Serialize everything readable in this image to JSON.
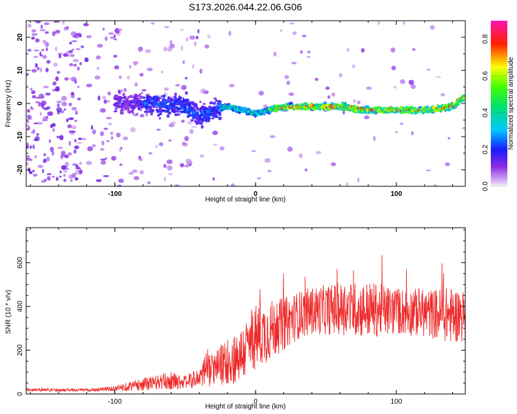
{
  "title": "S173.2026.044.22.06.G06",
  "colors": {
    "snr_line": "#ee2b2b",
    "frame": "#000000"
  },
  "chart_data": [
    {
      "type": "heatmap",
      "xlabel": "Height of straight line (km)",
      "ylabel": "Frequency (Hz)",
      "xlim": [
        -163,
        149
      ],
      "ylim": [
        -25,
        25
      ],
      "x_ticks": [
        -100,
        0,
        100
      ],
      "y_ticks": [
        -20,
        -10,
        0,
        10,
        20
      ],
      "colorbar": {
        "label": "Normalized spectral amplitude",
        "range": [
          0.0,
          0.9
        ],
        "ticks": [
          0.0,
          0.2,
          0.4,
          0.6,
          0.8
        ],
        "tick_labels": [
          "0.0",
          "0.2",
          "0.4",
          "0.6",
          "0.8"
        ]
      },
      "ridge": {
        "x": [
          -90,
          -70,
          -50,
          -40,
          -30,
          -20,
          0,
          20,
          40,
          60,
          80,
          100,
          120,
          140,
          148
        ],
        "freq_hz": [
          0,
          0,
          -1,
          -4,
          -2,
          -1,
          -3,
          -1,
          -1,
          -1,
          -2,
          -2,
          -2,
          -1,
          2
        ]
      }
    },
    {
      "type": "line",
      "xlabel": "Height of straight line (km)",
      "ylabel": "SNR (10 * v/v)",
      "xlim": [
        -163,
        149
      ],
      "ylim": [
        0,
        760
      ],
      "x_ticks": [
        -100,
        0,
        100
      ],
      "y_ticks": [
        0,
        200,
        400,
        600
      ],
      "series": [
        {
          "name": "SNR",
          "envelope_x": [
            -163,
            -120,
            -100,
            -80,
            -60,
            -50,
            -40,
            -35,
            -30,
            -20,
            -10,
            0,
            10,
            20,
            30,
            40,
            60,
            80,
            100,
            120,
            140,
            149
          ],
          "envelope_mean": [
            20,
            18,
            25,
            45,
            60,
            55,
            75,
            120,
            110,
            150,
            180,
            260,
            290,
            320,
            360,
            380,
            390,
            385,
            380,
            370,
            360,
            360
          ],
          "envelope_amplitude": [
            8,
            6,
            12,
            30,
            40,
            30,
            45,
            90,
            70,
            110,
            130,
            150,
            140,
            120,
            110,
            110,
            120,
            130,
            110,
            110,
            130,
            120
          ]
        }
      ]
    }
  ]
}
